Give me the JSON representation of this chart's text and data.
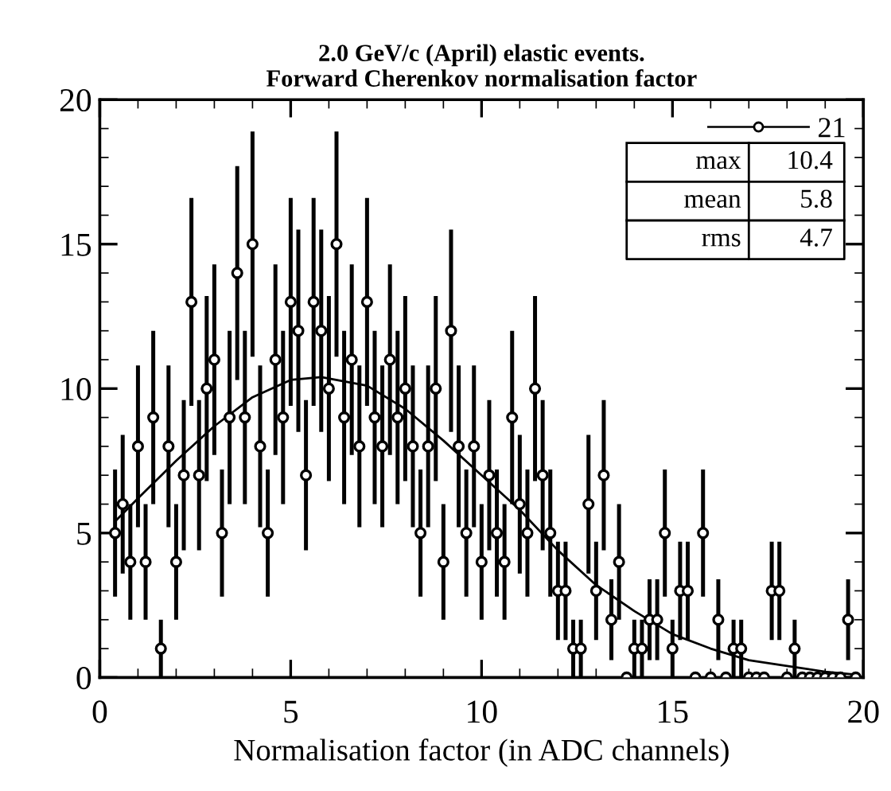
{
  "chart_data": {
    "type": "scatter",
    "title": "2.0 GeV/c (April) elastic events.\nForward Cherenkov normalisation factor",
    "xlabel": "Normalisation factor (in ADC channels)",
    "x": [
      0.4,
      0.6,
      0.8,
      1.0,
      1.2,
      1.4,
      1.6,
      1.8,
      2.0,
      2.2,
      2.4,
      2.6,
      2.8,
      3.0,
      3.2,
      3.4,
      3.6,
      3.8,
      4.0,
      4.2,
      4.4,
      4.6,
      4.8,
      5.0,
      5.2,
      5.4,
      5.6,
      5.8,
      6.0,
      6.2,
      6.4,
      6.6,
      6.8,
      7.0,
      7.2,
      7.4,
      7.6,
      7.8,
      8.0,
      8.2,
      8.4,
      8.6,
      8.8,
      9.0,
      9.2,
      9.4,
      9.6,
      9.8,
      10.0,
      10.2,
      10.4,
      10.6,
      10.8,
      11.0,
      11.2,
      11.4,
      11.6,
      11.8,
      12.0,
      12.2,
      12.4,
      12.6,
      12.8,
      13.0,
      13.2,
      13.4,
      13.6,
      13.8,
      14.0,
      14.2,
      14.4,
      14.6,
      14.8,
      15.0,
      15.2,
      15.4,
      15.6,
      15.8,
      16.0,
      16.2,
      16.4,
      16.6,
      16.8,
      17.0,
      17.2,
      17.4,
      17.6,
      17.8,
      18.0,
      18.2,
      18.4,
      18.6,
      18.8,
      19.0,
      19.2,
      19.4,
      19.6,
      19.8
    ],
    "series": [
      {
        "name": "21",
        "color": "#000000",
        "marker": "circle",
        "values": [
          5,
          6,
          4,
          8,
          4,
          9,
          1,
          8,
          4,
          7,
          13,
          7,
          10,
          11,
          5,
          9,
          14,
          9,
          15,
          8,
          5,
          11,
          9,
          13,
          12,
          7,
          13,
          12,
          10,
          15,
          9,
          11,
          8,
          13,
          9,
          8,
          11,
          9,
          10,
          8,
          5,
          8,
          10,
          4,
          12,
          8,
          5,
          8,
          4,
          7,
          5,
          4,
          9,
          6,
          5,
          10,
          7,
          5,
          3,
          3,
          1,
          1,
          6,
          3,
          7,
          2,
          4,
          0,
          1,
          1,
          2,
          2,
          5,
          1,
          3,
          3,
          0,
          5,
          0,
          2,
          0,
          1,
          1,
          0,
          0,
          0,
          3,
          3,
          0,
          1,
          0,
          0,
          0,
          0,
          0,
          0,
          2,
          0
        ],
        "errors": [
          2.2,
          2.4,
          2,
          2.8,
          2,
          3,
          1,
          2.8,
          2,
          2.6,
          3.6,
          2.6,
          3.2,
          3.3,
          2.2,
          3,
          3.7,
          3,
          3.9,
          2.8,
          2.2,
          3.3,
          3,
          3.6,
          3.5,
          2.6,
          3.6,
          3.5,
          3.2,
          3.9,
          3,
          3.3,
          2.8,
          3.6,
          3,
          2.8,
          3.3,
          3,
          3.2,
          2.8,
          2.2,
          2.8,
          3.2,
          2,
          3.5,
          2.8,
          2.2,
          2.8,
          2,
          2.6,
          2.2,
          2,
          3,
          2.4,
          2.2,
          3.2,
          2.6,
          2.2,
          1.7,
          1.7,
          1,
          1,
          2.4,
          1.7,
          2.6,
          1.4,
          2,
          null,
          1,
          1,
          1.4,
          1.4,
          2.2,
          1,
          1.7,
          1.7,
          null,
          2.2,
          null,
          1.4,
          null,
          1,
          1,
          null,
          null,
          null,
          1.7,
          1.7,
          null,
          1,
          null,
          null,
          null,
          null,
          null,
          null,
          1.4,
          null
        ]
      },
      {
        "type": "line",
        "color": "#000000",
        "marker": "none",
        "line_style": "solid",
        "x": [
          0.4,
          1,
          2,
          3,
          4,
          5,
          5.8,
          7,
          8,
          9,
          10,
          11,
          12,
          13,
          14,
          15,
          16,
          17,
          18,
          19,
          19.8
        ],
        "values": [
          5.4,
          6.2,
          7.5,
          8.7,
          9.7,
          10.3,
          10.4,
          10.1,
          9.3,
          8.2,
          7.0,
          5.8,
          4.4,
          3.2,
          2.3,
          1.5,
          1.0,
          0.6,
          0.4,
          0.2,
          0.1
        ]
      }
    ],
    "xlim": [
      0,
      20
    ],
    "ylim": [
      0,
      20
    ],
    "xticks": [
      0,
      5,
      10,
      15,
      20
    ],
    "yticks": [
      0,
      5,
      10,
      15,
      20
    ],
    "grid": false,
    "legend": "top right",
    "annotations": [
      "max",
      "10.4",
      "mean",
      "5.8",
      "rms",
      "4.7"
    ]
  }
}
